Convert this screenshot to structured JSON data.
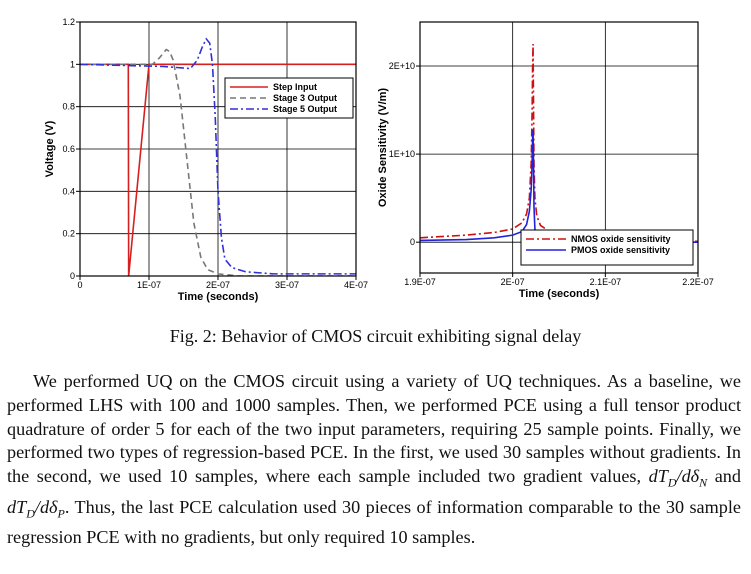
{
  "chart_data": [
    {
      "type": "line",
      "xlabel": "Time (seconds)",
      "ylabel": "Voltage (V)",
      "xlim": [
        0,
        4e-07
      ],
      "ylim": [
        0,
        1.2
      ],
      "x_ticks": [
        0,
        1e-07,
        2e-07,
        3e-07,
        4e-07
      ],
      "x_tick_labels": [
        "0",
        "1E-07",
        "2E-07",
        "3E-07",
        "4E-07"
      ],
      "y_ticks": [
        0,
        0.2,
        0.4,
        0.6,
        0.8,
        1,
        1.2
      ],
      "y_tick_labels": [
        "0",
        "0.2",
        "0.4",
        "0.6",
        "0.8",
        "1",
        "1.2"
      ],
      "grid": true,
      "legend_position": "top-right",
      "series": [
        {
          "name": "Step Input",
          "color": "#d62020",
          "dash": "solid",
          "x": [
            0,
            7e-08,
            7.05e-08,
            1e-07,
            4e-07
          ],
          "y": [
            1.0,
            1.0,
            0.0,
            1.0,
            1.0
          ]
        },
        {
          "name": "Stage 3 Output",
          "color": "#777777",
          "dash": "dashed",
          "x": [
            0,
            9e-08,
            1.05e-07,
            1.15e-07,
            1.25e-07,
            1.3e-07,
            1.35e-07,
            1.45e-07,
            1.55e-07,
            1.65e-07,
            1.75e-07,
            1.85e-07,
            2e-07,
            2.3e-07,
            4e-07
          ],
          "y": [
            1.0,
            1.0,
            1.0,
            1.03,
            1.07,
            1.06,
            1.02,
            0.85,
            0.55,
            0.25,
            0.09,
            0.03,
            0.01,
            0.0,
            0.0
          ]
        },
        {
          "name": "Stage 5 Output",
          "color": "#3030d8",
          "dash": "dashdot",
          "x": [
            0,
            1.2e-07,
            1.4e-07,
            1.6e-07,
            1.7e-07,
            1.77e-07,
            1.83e-07,
            1.88e-07,
            1.92e-07,
            1.96e-07,
            2e-07,
            2.05e-07,
            2.1e-07,
            2.2e-07,
            2.4e-07,
            2.8e-07,
            4e-07
          ],
          "y": [
            1.0,
            0.99,
            0.985,
            0.98,
            1.02,
            1.08,
            1.12,
            1.1,
            1.0,
            0.75,
            0.4,
            0.18,
            0.08,
            0.04,
            0.02,
            0.01,
            0.01
          ]
        }
      ]
    },
    {
      "type": "line",
      "xlabel": "Time (seconds)",
      "ylabel": "Oxide Sensitivity (V/m)",
      "xlim": [
        1.9e-07,
        2.2e-07
      ],
      "ylim": [
        -3500000000.0,
        25000000000.0
      ],
      "x_ticks": [
        1.9e-07,
        2e-07,
        2.1e-07,
        2.2e-07
      ],
      "x_tick_labels": [
        "1.9E-07",
        "2E-07",
        "2.1E-07",
        "2.2E-07"
      ],
      "y_ticks": [
        0,
        10000000000.0,
        20000000000.0
      ],
      "y_tick_labels": [
        "0",
        "1E+10",
        "2E+10"
      ],
      "grid": true,
      "legend_position": "bottom-right",
      "series": [
        {
          "name": "NMOS oxide sensitivity",
          "color": "#cc1111",
          "dash": "dashdot",
          "x": [
            1.9e-07,
            1.95e-07,
            1.98e-07,
            2e-07,
            2.01e-07,
            2.015e-07,
            2.018e-07,
            2.02e-07,
            2.021e-07,
            2.0215e-07,
            2.022e-07,
            2.0225e-07,
            2.023e-07,
            2.024e-07,
            2.026e-07,
            2.03e-07,
            2.04e-07,
            2.06e-07,
            2.1e-07,
            2.2e-07
          ],
          "y": [
            500000000.0,
            800000000.0,
            1100000000.0,
            1500000000.0,
            2200000000.0,
            3200000000.0,
            5000000000.0,
            9000000000.0,
            15000000000.0,
            20000000000.0,
            22500000000.0,
            16000000000.0,
            9000000000.0,
            5000000000.0,
            3000000000.0,
            1900000000.0,
            1200000000.0,
            600000000.0,
            200000000.0,
            100000000.0
          ]
        },
        {
          "name": "PMOS oxide sensitivity",
          "color": "#2222dd",
          "dash": "solid",
          "x": [
            1.9e-07,
            1.95e-07,
            1.98e-07,
            2e-07,
            2.01e-07,
            2.015e-07,
            2.018e-07,
            2.02e-07,
            2.021e-07,
            2.0215e-07,
            2.022e-07,
            2.0225e-07,
            2.023e-07,
            2.024e-07,
            2.026e-07,
            2.03e-07,
            2.04e-07,
            2.06e-07,
            2.1e-07,
            2.2e-07
          ],
          "y": [
            200000000.0,
            300000000.0,
            500000000.0,
            800000000.0,
            1200000000.0,
            2000000000.0,
            3500000000.0,
            6000000000.0,
            9000000000.0,
            11800000000.0,
            12800000000.0,
            9000000000.0,
            4000000000.0,
            1500000000.0,
            600000000.0,
            300000000.0,
            200000000.0,
            100000000.0,
            50000000.0,
            0
          ]
        }
      ]
    }
  ],
  "caption": "Fig. 2: Behavior of CMOS circuit exhibiting signal delay",
  "paragraph": {
    "part1": "We performed UQ on the CMOS circuit using a variety of UQ techniques. As a baseline, we performed LHS with 100 and 1000 samples. Then, we performed PCE using a full tensor product quadrature of order 5 for each of the two input parameters, requiring 25 sample points. Finally, we performed two types of regression-based PCE. In the first, we used 30 samples without gradients. In the second, we used 10 samples, where each sample included two gradient values,",
    "math1": "dT_D/dδ_N",
    "and": "and",
    "math2": "dT_D/dδ_P",
    "part2": ". Thus, the last PCE calculation used 30 pieces of information comparable to the 30 sample regression PCE with no gradients, but only required 10 samples."
  }
}
